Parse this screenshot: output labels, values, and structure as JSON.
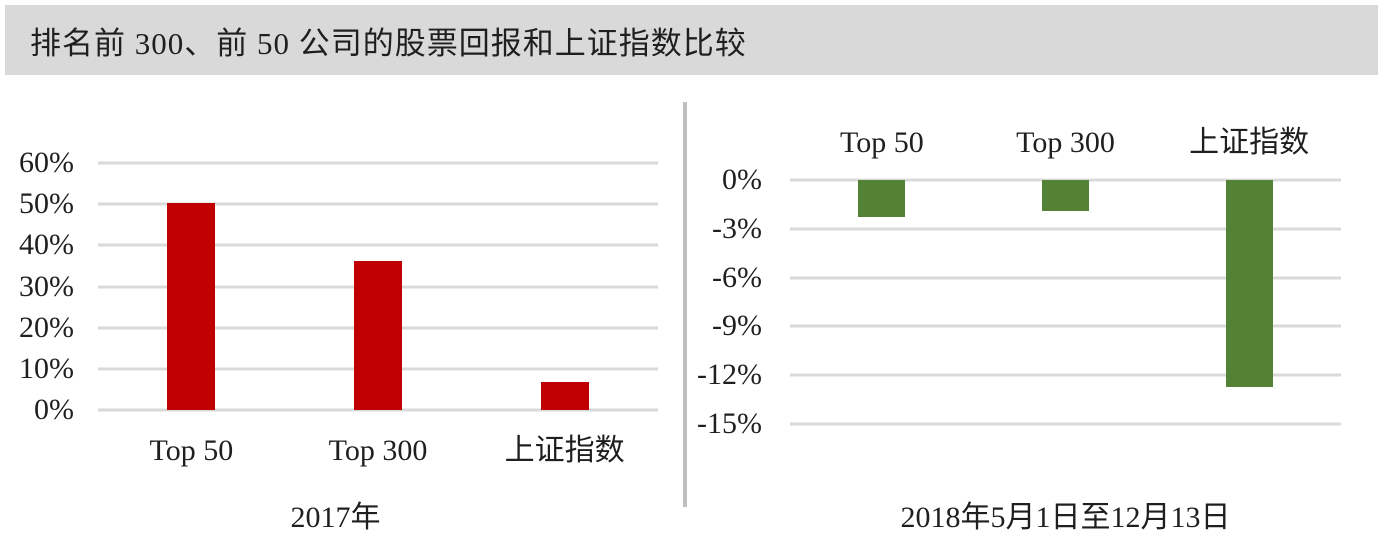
{
  "header": {
    "title": "排名前 300、前 50 公司的股票回报和上证指数比较"
  },
  "colors": {
    "header_bg": "#D9D9D9",
    "red_bar": "#C00000",
    "green_bar": "#548235",
    "gridline": "#D9D9D9",
    "divider": "#BFBFBF",
    "text": "#1F1F1F"
  },
  "chart_data": [
    {
      "type": "bar",
      "title": "",
      "xlabel": "2017年",
      "ylabel": "",
      "categories": [
        "Top 50",
        "Top 300",
        "上证指数"
      ],
      "values": [
        50.2,
        36.3,
        6.7
      ],
      "bar_color": "#C00000",
      "labels_position": "bottom",
      "grid": true,
      "legend": false,
      "axis": {
        "ymin": 0,
        "ymax": 60,
        "tick_values": [
          60,
          50,
          40,
          30,
          20,
          10,
          0
        ],
        "tick_labels": [
          "60%",
          "50%",
          "40%",
          "30%",
          "20%",
          "10%",
          "0%"
        ]
      }
    },
    {
      "type": "bar",
      "title": "",
      "xlabel": "2018年5月1日至12月13日",
      "ylabel": "",
      "categories": [
        "Top 50",
        "Top 300",
        "上证指数"
      ],
      "values": [
        -2.3,
        -1.9,
        -12.7
      ],
      "bar_color": "#548235",
      "labels_position": "top",
      "grid": true,
      "legend": false,
      "axis": {
        "ymin": -15,
        "ymax": 0,
        "tick_values": [
          0,
          -3,
          -6,
          -9,
          -12,
          -15
        ],
        "tick_labels": [
          "0%",
          "-3%",
          "-6%",
          "-9%",
          "-12%",
          "-15%"
        ]
      }
    }
  ]
}
